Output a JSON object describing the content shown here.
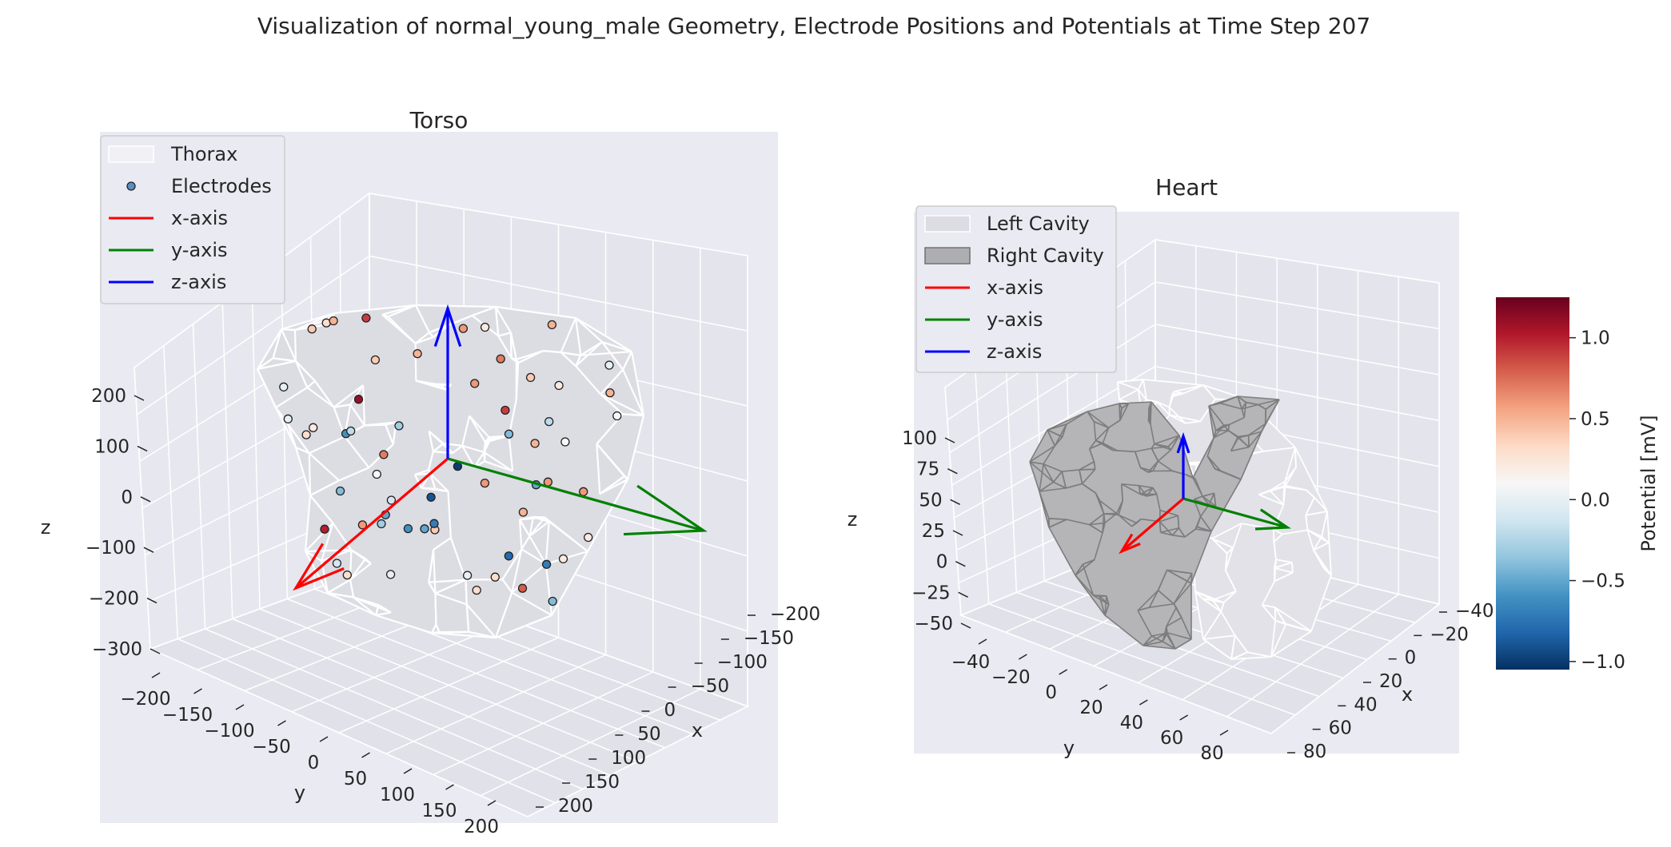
{
  "figure": {
    "title": "Visualization of normal_young_male Geometry, Electrode Positions and Potentials at Time Step 207"
  },
  "colors": {
    "panel_bg": "#eaeaf2",
    "wire": "#ffffff",
    "heart_wire": "#808080",
    "x_axis": "#ff0000",
    "y_axis": "#008000",
    "z_axis": "#0000ff"
  },
  "chart_data": [
    {
      "type": "scatter",
      "subtitle": "Torso",
      "xlabel": "x",
      "ylabel": "y",
      "zlabel": "z",
      "x_ticks": [
        "−200",
        "−150",
        "−100",
        "−50",
        "0",
        "50",
        "100",
        "150",
        "200"
      ],
      "y_ticks": [
        "−200",
        "−150",
        "−100",
        "−50",
        "0",
        "50",
        "100",
        "150",
        "200"
      ],
      "z_ticks": [
        "200",
        "100",
        "0",
        "−100",
        "−200",
        "−300"
      ],
      "legend": {
        "placement": "top-left",
        "entries": [
          {
            "label": "Thorax",
            "kind": "patch"
          },
          {
            "label": "Electrodes",
            "kind": "marker"
          },
          {
            "label": "x-axis",
            "kind": "line",
            "color": "#ff0000"
          },
          {
            "label": "y-axis",
            "kind": "line",
            "color": "#008000"
          },
          {
            "label": "z-axis",
            "kind": "line",
            "color": "#0000ff"
          }
        ]
      },
      "electrode_potentials_mV": [
        -0.9,
        -0.6,
        0.3,
        0.6,
        0.4,
        -0.5,
        0.1,
        -0.3,
        0.5,
        0.1,
        0.6,
        -0.4,
        0.7,
        -0.8,
        -1.0,
        0.1,
        0.0,
        -0.3,
        -0.2,
        0.3,
        0.6,
        0.2,
        -0.4,
        0.0,
        0.2,
        -0.5,
        -0.6,
        0.2,
        0.4,
        0.0,
        0.2,
        0.5,
        -0.4,
        0.0,
        0.6,
        0.8,
        0.4,
        -0.7,
        1.1,
        0.9,
        0.7,
        0.3,
        -0.2,
        0.6,
        0.5,
        0.5,
        0.9,
        0.3,
        0.4,
        1.0,
        -0.1,
        0.2,
        0.5,
        0.0,
        -0.5,
        -0.7,
        0.3,
        0.6,
        0.5,
        -0.1
      ]
    },
    {
      "type": "scatter",
      "subtitle": "Heart",
      "xlabel": "x",
      "ylabel": "y",
      "zlabel": "z",
      "x_ticks": [
        "−40",
        "−20",
        "0",
        "20",
        "40",
        "60",
        "80"
      ],
      "y_ticks": [
        "−40",
        "−20",
        "0",
        "20",
        "40",
        "60",
        "80"
      ],
      "z_ticks": [
        "100",
        "75",
        "50",
        "25",
        "0",
        "−25",
        "−50"
      ],
      "legend": {
        "placement": "top-left",
        "entries": [
          {
            "label": "Left Cavity",
            "kind": "patch-light"
          },
          {
            "label": "Right Cavity",
            "kind": "patch-dark"
          },
          {
            "label": "x-axis",
            "kind": "line",
            "color": "#ff0000"
          },
          {
            "label": "y-axis",
            "kind": "line",
            "color": "#008000"
          },
          {
            "label": "z-axis",
            "kind": "line",
            "color": "#0000ff"
          }
        ]
      },
      "colorbar": {
        "label": "Potential [mV]",
        "range": [
          -1.05,
          1.25
        ],
        "ticks": [
          1.0,
          0.5,
          0.0,
          -0.5,
          -1.0
        ],
        "tick_labels": [
          "1.0",
          "0.5",
          "0.0",
          "−0.5",
          "−1.0"
        ],
        "colormap": "RdBu_r"
      }
    }
  ]
}
